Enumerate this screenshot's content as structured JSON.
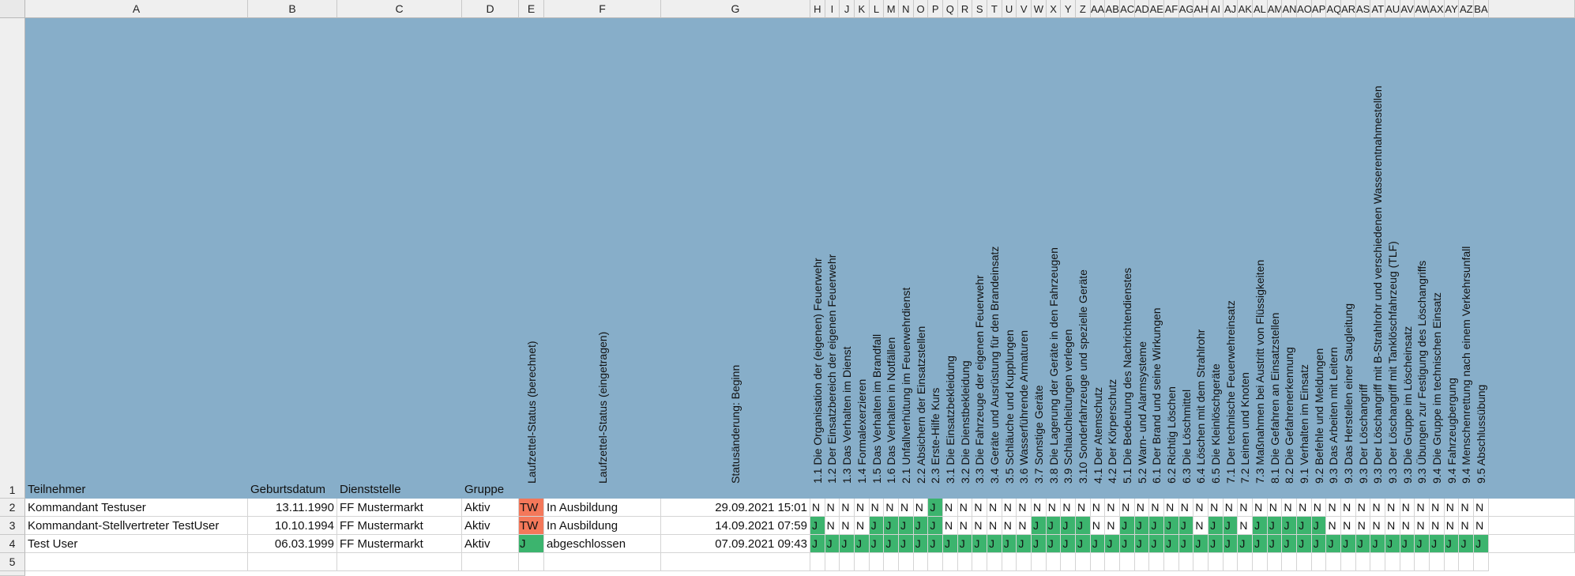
{
  "columns": [
    "A",
    "B",
    "C",
    "D",
    "E",
    "F",
    "G",
    "H",
    "I",
    "J",
    "K",
    "L",
    "M",
    "N",
    "O",
    "P",
    "Q",
    "R",
    "S",
    "T",
    "U",
    "V",
    "W",
    "X",
    "Y",
    "Z",
    "AA",
    "AB",
    "AC",
    "AD",
    "AE",
    "AF",
    "AG",
    "AH",
    "AI",
    "AJ",
    "AK",
    "AL",
    "AM",
    "AN",
    "AO",
    "AP",
    "AQ",
    "AR",
    "AS",
    "AT",
    "AU",
    "AV",
    "AW",
    "AX",
    "AY",
    "AZ",
    "BA"
  ],
  "rows": [
    "1",
    "2",
    "3",
    "4",
    "5"
  ],
  "headers": {
    "teilnehmer": "Teilnehmer",
    "geburtsdatum": "Geburtsdatum",
    "dienststelle": "Dienststelle",
    "gruppe": "Gruppe",
    "status_berechnet": "Laufzettel-Status (berechnet)",
    "status_eingetragen": "Laufzettel-Status (eingetragen)",
    "statusaenderung": "Statusänderung: Beginn",
    "modules": [
      "1.1 Die Organisation der (eigenen) Feuerwehr",
      "1.2 Der Einsatzbereich der eigenen Feuerwehr",
      "1.3 Das Verhalten im Dienst",
      "1.4 Formalexerzieren",
      "1.5 Das Verhalten im Brandfall",
      "1.6 Das Verhalten in Notfällen",
      "2.1 Unfallverhütung im Feuerwehrdienst",
      "2.2 Absichern der Einsatzstellen",
      "2.3 Erste-Hilfe Kurs",
      "3.1 Die Einsatzbekleidung",
      "3.2 Die Dienstbekleidung",
      "3.3 Die Fahrzeuge der eigenen Feuerwehr",
      "3.4 Geräte und Ausrüstung für den Brandeinsatz",
      "3.5 Schläuche und Kupplungen",
      "3.6 Wasserführende Armaturen",
      "3.7 Sonstige Geräte",
      "3.8 Die Lagerung der Geräte in den Fahrzeugen",
      "3.9 Schlauchleitungen verlegen",
      "3.10 Sonderfahrzeuge und spezielle Geräte",
      "4.1 Der Atemschutz",
      "4.2 Der Körperschutz",
      "5.1 Die Bedeutung des Nachrichtendienstes",
      "5.2 Warn- und Alarmsysteme",
      "6.1 Der Brand und seine Wirkungen",
      "6.2 Richtig Löschen",
      "6.3 Die Löschmittel",
      "6.4 Löschen mit dem Strahlrohr",
      "6.5 Die Kleinlöschgeräte",
      "7.1 Der technische Feuerwehreinsatz",
      "7.2 Leinen und Knoten",
      "7.3 Maßnahmen bei Austritt von Flüssigkeiten",
      "8.1 Die Gefahren an Einsatzstellen",
      "8.2 Die Gefahrenerkennung",
      "9.1 Verhalten im Einsatz",
      "9.2 Befehle und Meldungen",
      "9.3 Das Arbeiten mit Leitern",
      "9.3 Das Herstellen einer Saugleitung",
      "9.3 Der Löschangriff",
      "9.3 Der Löschangriff mit B-Strahlrohr und verschiedenen Wasserentnahmestellen",
      "9.3 Der Löschangriff mit Tanklöschfahrzeug (TLF)",
      "9.3 Die Gruppe im Löscheinsatz",
      "9.3 Übungen zur Festigung des Löschangriffs",
      "9.4 Die Gruppe im technischen Einsatz",
      "9.4 Fahrzeugbergung",
      "9.4 Menschenrettung nach einem Verkehrsunfall",
      "9.5 Abschlussübung"
    ]
  },
  "records": [
    {
      "teilnehmer": "Kommandant Testuser",
      "geburtsdatum": "13.11.1990",
      "dienststelle": "FF Mustermarkt",
      "gruppe": "Aktiv",
      "status_berechnet": "TW",
      "status_eingetragen": "In Ausbildung",
      "statusaenderung": "29.09.2021 15:01",
      "modules": [
        "N",
        "N",
        "N",
        "N",
        "N",
        "N",
        "N",
        "N",
        "J",
        "N",
        "N",
        "N",
        "N",
        "N",
        "N",
        "N",
        "N",
        "N",
        "N",
        "N",
        "N",
        "N",
        "N",
        "N",
        "N",
        "N",
        "N",
        "N",
        "N",
        "N",
        "N",
        "N",
        "N",
        "N",
        "N",
        "N",
        "N",
        "N",
        "N",
        "N",
        "N",
        "N",
        "N",
        "N",
        "N",
        "N"
      ]
    },
    {
      "teilnehmer": "Kommandant-Stellvertreter TestUser",
      "geburtsdatum": "10.10.1994",
      "dienststelle": "FF Mustermarkt",
      "gruppe": "Aktiv",
      "status_berechnet": "TW",
      "status_eingetragen": "In Ausbildung",
      "statusaenderung": "14.09.2021 07:59",
      "modules": [
        "J",
        "N",
        "N",
        "N",
        "J",
        "J",
        "J",
        "J",
        "J",
        "N",
        "N",
        "N",
        "N",
        "N",
        "N",
        "J",
        "J",
        "J",
        "J",
        "N",
        "N",
        "J",
        "J",
        "J",
        "J",
        "J",
        "N",
        "J",
        "J",
        "N",
        "J",
        "J",
        "J",
        "J",
        "J",
        "N",
        "N",
        "N",
        "N",
        "N",
        "N",
        "N",
        "N",
        "N",
        "N",
        "N"
      ]
    },
    {
      "teilnehmer": "Test User",
      "geburtsdatum": "06.03.1999",
      "dienststelle": "FF Mustermarkt",
      "gruppe": "Aktiv",
      "status_berechnet": "J",
      "status_eingetragen": "abgeschlossen",
      "statusaenderung": "07.09.2021 09:43",
      "modules": [
        "J",
        "J",
        "J",
        "J",
        "J",
        "J",
        "J",
        "J",
        "J",
        "J",
        "J",
        "J",
        "J",
        "J",
        "J",
        "J",
        "J",
        "J",
        "J",
        "J",
        "J",
        "J",
        "J",
        "J",
        "J",
        "J",
        "J",
        "J",
        "J",
        "J",
        "J",
        "J",
        "J",
        "J",
        "J",
        "J",
        "J",
        "J",
        "J",
        "J",
        "J",
        "J",
        "J",
        "J",
        "J",
        "J"
      ]
    }
  ],
  "colors": {
    "header_fill": "#87aec9",
    "status_tw": "#f4785a",
    "status_j": "#3cb46e"
  }
}
